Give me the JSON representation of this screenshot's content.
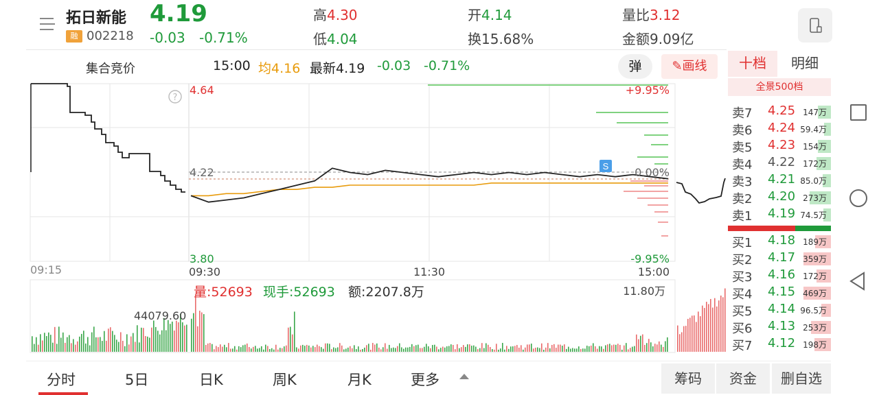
{
  "header": {
    "stock_name": "拓日新能",
    "rong_badge": "融",
    "stock_code": "002218",
    "last_price": "4.19",
    "change": "-0.03",
    "change_pct": "-0.71%",
    "high_label": "高",
    "high_value": "4.30",
    "low_label": "低",
    "low_value": "4.04",
    "open_label": "开",
    "open_value": "4.14",
    "turnover_label": "换",
    "turnover_value": "15.68%",
    "volratio_label": "量比",
    "volratio_value": "3.12",
    "amount_label": "金额",
    "amount_value": "9.09亿"
  },
  "subheader": {
    "auction_label": "集合竞价",
    "time": "15:00",
    "avg_label": "均",
    "avg_value": "4.16",
    "latest_label": "最新",
    "latest_value": "4.19",
    "change": "-0.03",
    "change_pct": "-0.71%",
    "tan_button": "弹",
    "draw_button": "画线"
  },
  "chart": {
    "help_glyph": "?",
    "price_top": "4.64",
    "price_mid": "4.22",
    "price_bottom": "3.80",
    "pct_top": "+9.95%",
    "pct_mid": "0.00%",
    "pct_bottom": "-9.95%",
    "t_0915": "09:15",
    "t_0930": "09:30",
    "t_1130": "11:30",
    "t_1500": "15:00",
    "s_marker": "S",
    "auction_vol_label": "44079.60",
    "vol_label": "量:52693",
    "hand_label": "现手:52693",
    "amt_label": "额:2207.8万",
    "vol_max": "11.80万"
  },
  "chart_data": {
    "type": "line",
    "title": "",
    "xlabel": "",
    "ylabel": "",
    "ylim": [
      3.8,
      4.64
    ],
    "prev_close": 4.22,
    "x_ticks": [
      "09:30",
      "11:30",
      "15:00"
    ],
    "series": [
      {
        "values": [
          4.11,
          4.08,
          4.09,
          4.1,
          4.12,
          4.14,
          4.16,
          4.18,
          4.24,
          4.22,
          4.21,
          4.23,
          4.22,
          4.21,
          4.2,
          4.21,
          4.22,
          4.21,
          4.22,
          4.21,
          4.22,
          4.21,
          4.2,
          4.21,
          4.2,
          4.21,
          4.2,
          4.19
        ]
      },
      {
        "values": [
          4.11,
          4.11,
          4.12,
          4.12,
          4.13,
          4.14,
          4.14,
          4.15,
          4.15,
          4.16,
          4.16,
          4.16,
          4.16,
          4.16,
          4.16,
          4.16,
          4.16,
          4.17,
          4.17,
          4.17,
          4.17,
          4.17,
          4.17,
          4.17,
          4.17,
          4.17,
          4.17,
          4.17
        ]
      }
    ]
  },
  "orderbook": {
    "tab_active": "十档",
    "tab_other": "明细",
    "full_depth": "全景500档",
    "asks": [
      {
        "label": "卖7",
        "price": "4.25",
        "vol": "147万",
        "color": "#e03030"
      },
      {
        "label": "卖6",
        "price": "4.24",
        "vol": "59.4万",
        "color": "#e03030"
      },
      {
        "label": "卖5",
        "price": "4.23",
        "vol": "154万",
        "color": "#e03030"
      },
      {
        "label": "卖4",
        "price": "4.22",
        "vol": "172万",
        "color": "#555555"
      },
      {
        "label": "卖3",
        "price": "4.21",
        "vol": "85.0万",
        "color": "#1f9a3a"
      },
      {
        "label": "卖2",
        "price": "4.20",
        "vol": "273万",
        "color": "#1f9a3a"
      },
      {
        "label": "卖1",
        "price": "4.19",
        "vol": "74.5万",
        "color": "#1f9a3a"
      }
    ],
    "bids": [
      {
        "label": "买1",
        "price": "4.18",
        "vol": "189万",
        "color": "#1f9a3a"
      },
      {
        "label": "买2",
        "price": "4.17",
        "vol": "359万",
        "color": "#1f9a3a"
      },
      {
        "label": "买3",
        "price": "4.16",
        "vol": "172万",
        "color": "#1f9a3a"
      },
      {
        "label": "买4",
        "price": "4.15",
        "vol": "469万",
        "color": "#1f9a3a"
      },
      {
        "label": "买5",
        "price": "4.14",
        "vol": "96.5万",
        "color": "#1f9a3a"
      },
      {
        "label": "买6",
        "price": "4.13",
        "vol": "253万",
        "color": "#1f9a3a"
      },
      {
        "label": "买7",
        "price": "4.12",
        "vol": "198万",
        "color": "#1f9a3a"
      }
    ]
  },
  "nav": {
    "tabs": [
      "分时",
      "5日",
      "日K",
      "周K",
      "月K",
      "更多"
    ],
    "btn_chip": "筹码",
    "btn_fund": "资金",
    "btn_remove": "删自选"
  },
  "colors": {
    "up": "#e03030",
    "down": "#1f9a3a",
    "avg": "#e89b0c"
  }
}
